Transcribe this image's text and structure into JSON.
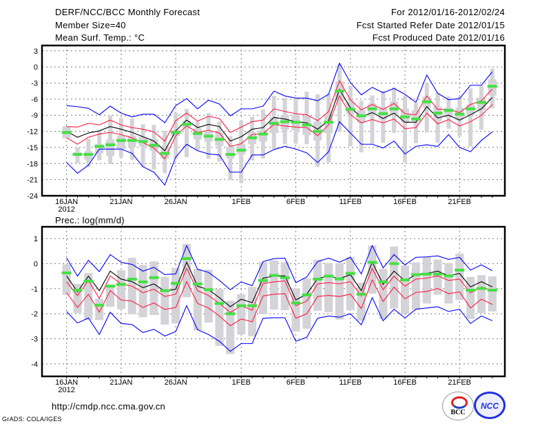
{
  "header": {
    "title": "DERF/NCC/BCC Monthly Forecast",
    "member_size": "Member Size=40",
    "variable": "Mean Surf. Temp.: °C",
    "period": "For 2012/01/16-2012/02/24",
    "start_date": "Fcst Started Refer Date 2012/01/15",
    "produced_date": "Fcst Produced Date 2012/01/16"
  },
  "footer": {
    "url": "http://cmdp.ncc.cma.gov.cn",
    "grads": "GrADS: COLA/IGES",
    "logo_bcc": "BCC",
    "logo_ncc": "NCC"
  },
  "colors": {
    "max_min": "#0000ff",
    "spread": "#ff1a40",
    "mean": "#000000",
    "marker": "#44e044",
    "range": "#d3d3d8"
  },
  "chart_data": [
    {
      "type": "line",
      "title": "Mean Surf. Temp.: °C",
      "xlabel": "",
      "ylabel": "",
      "x_tick_labels": [
        "16JAN",
        "21JAN",
        "26JAN",
        "1FEB",
        "6FEB",
        "11FEB",
        "16FEB",
        "21FEB"
      ],
      "x_tick_days": [
        0,
        5,
        10,
        16,
        21,
        26,
        31,
        36
      ],
      "year_label": "2012",
      "xlim": [
        -2.25,
        40.15
      ],
      "ylim": [
        -24,
        4
      ],
      "y_ticks": [
        3,
        0,
        -3,
        -6,
        -9,
        -12,
        -15,
        -18,
        -21,
        -24
      ],
      "grid": true,
      "series": {
        "max": [
          -7.2,
          -7.4,
          -7.7,
          -8.9,
          -7.3,
          -8.6,
          -9.3,
          -8.8,
          -8.8,
          -10.4,
          -7.2,
          -5.9,
          -7.8,
          -6.2,
          -6.9,
          -9.1,
          -7.8,
          -7.8,
          -7.3,
          -4.5,
          -5.4,
          -5.8,
          -5.8,
          -6.3,
          -5.1,
          0.7,
          -2.9,
          -5.2,
          -3.8,
          -4.8,
          -4.0,
          -5.1,
          -6.6,
          -1.5,
          -4.9,
          -6.1,
          -5.9,
          -3.4,
          -3.4,
          -0.9
        ],
        "upper": [
          -11.1,
          -11.2,
          -10.5,
          -10.8,
          -9.9,
          -10.8,
          -11.3,
          -11.6,
          -12.1,
          -13.8,
          -10.0,
          -8.6,
          -10.1,
          -9.2,
          -9.6,
          -12.2,
          -11.2,
          -10.2,
          -9.9,
          -7.8,
          -8.3,
          -8.7,
          -8.9,
          -10.0,
          -8.3,
          -2.6,
          -6.1,
          -8.0,
          -7.0,
          -7.9,
          -6.8,
          -8.7,
          -8.9,
          -5.4,
          -7.9,
          -7.9,
          -8.5,
          -7.0,
          -6.3,
          -4.1
        ],
        "mean": [
          -12.0,
          -13.1,
          -12.3,
          -11.9,
          -11.1,
          -11.6,
          -12.2,
          -13.0,
          -13.8,
          -15.6,
          -11.9,
          -9.9,
          -11.3,
          -10.7,
          -11.1,
          -13.8,
          -13.0,
          -11.6,
          -11.3,
          -9.4,
          -9.7,
          -10.2,
          -10.4,
          -11.6,
          -10.0,
          -4.2,
          -7.6,
          -9.3,
          -8.5,
          -9.6,
          -8.6,
          -10.3,
          -10.3,
          -7.4,
          -9.5,
          -9.0,
          -9.9,
          -8.9,
          -7.8,
          -5.7
        ],
        "lower": [
          -13.2,
          -14.4,
          -13.1,
          -12.5,
          -12.2,
          -12.6,
          -13.2,
          -14.1,
          -15.1,
          -17.1,
          -12.8,
          -11.0,
          -12.2,
          -11.8,
          -12.3,
          -14.8,
          -14.3,
          -12.6,
          -12.4,
          -10.7,
          -11.0,
          -11.2,
          -11.3,
          -12.8,
          -10.8,
          -5.4,
          -8.9,
          -10.4,
          -9.8,
          -10.4,
          -9.7,
          -11.5,
          -11.3,
          -8.6,
          -10.6,
          -9.8,
          -11.0,
          -10.2,
          -9.0,
          -7.0
        ],
        "min": [
          -17.8,
          -19.8,
          -18.3,
          -15.3,
          -15.3,
          -15.3,
          -16.1,
          -18.6,
          -19.6,
          -22.0,
          -16.8,
          -14.4,
          -15.6,
          -16.2,
          -16.4,
          -19.6,
          -19.6,
          -16.4,
          -16.4,
          -15.4,
          -14.8,
          -15.3,
          -16.0,
          -17.8,
          -15.8,
          -10.2,
          -12.3,
          -14.4,
          -14.4,
          -15.1,
          -13.8,
          -16.2,
          -14.8,
          -14.5,
          -14.8,
          -12.6,
          -15.0,
          -15.8,
          -13.7,
          -12.1
        ],
        "marker": [
          -12.2,
          -16.3,
          -16.3,
          -14.8,
          -14.5,
          -13.7,
          -13.7,
          -13.9,
          -14.6,
          -16.1,
          -12.2,
          -10.7,
          -12.4,
          -12.9,
          -13.5,
          -16.3,
          -15.5,
          -13.2,
          -12.5,
          -10.5,
          -10.2,
          -10.3,
          -10.8,
          -12.0,
          -10.3,
          -4.5,
          -7.9,
          -9.1,
          -7.8,
          -8.7,
          -7.8,
          -9.3,
          -9.7,
          -6.5,
          -8.6,
          -8.1,
          -8.8,
          -7.8,
          -6.6,
          -3.6
        ],
        "range_hi": [
          -11.0,
          -15.0,
          -13.4,
          -11.9,
          -9.0,
          -9.5,
          -9.6,
          -10.7,
          -10.8,
          -11.9,
          -8.6,
          -7.8,
          -10.2,
          -8.6,
          -10.2,
          -12.9,
          -10.1,
          -9.3,
          -7.9,
          -5.4,
          -5.8,
          -5.8,
          -4.6,
          -5.1,
          -5.0,
          0.5,
          -3.5,
          -6.3,
          -5.3,
          -4.5,
          -3.8,
          -5.5,
          -6.7,
          -3.0,
          -4.8,
          -5.5,
          -5.5,
          -4.0,
          -3.5,
          -0.3
        ],
        "range_lo": [
          -13.3,
          -17.9,
          -18.6,
          -17.4,
          -18.1,
          -16.8,
          -17.3,
          -18.7,
          -19.1,
          -19.8,
          -17.1,
          -16.8,
          -15.5,
          -17.1,
          -17.6,
          -21.1,
          -21.6,
          -17.4,
          -17.1,
          -15.3,
          -14.4,
          -14.3,
          -14.4,
          -18.6,
          -17.8,
          -12.1,
          -14.8,
          -15.9,
          -14.3,
          -14.1,
          -12.3,
          -17.8,
          -14.2,
          -12.2,
          -14.1,
          -11.5,
          -12.9,
          -14.8,
          -11.7,
          -7.7
        ],
        "box_hi": [
          -11.1,
          -15.9,
          -15.7,
          -14.4,
          -13.5,
          -12.8,
          -12.8,
          -13.1,
          -13.4,
          -14.7,
          -11.7,
          -10.0,
          -11.4,
          -12.0,
          -12.3,
          -14.8,
          -14.3,
          -12.1,
          -11.7,
          -9.3,
          -8.9,
          -8.9,
          -9.1,
          -10.2,
          -8.8,
          -2.7,
          -6.6,
          -8.1,
          -6.8,
          -7.6,
          -6.4,
          -7.8,
          -8.1,
          -5.5,
          -7.4,
          -7.6,
          -7.6,
          -7.0,
          -5.7,
          -2.3
        ],
        "box_lo": [
          -13.3,
          -16.6,
          -17.3,
          -16.1,
          -16.6,
          -15.3,
          -14.9,
          -14.8,
          -15.6,
          -17.1,
          -12.9,
          -11.5,
          -13.5,
          -13.9,
          -14.7,
          -17.1,
          -16.3,
          -14.4,
          -13.9,
          -12.3,
          -11.7,
          -11.8,
          -12.7,
          -13.7,
          -12.3,
          -6.3,
          -8.8,
          -10.4,
          -8.7,
          -9.8,
          -8.8,
          -10.4,
          -10.2,
          -7.6,
          -10.0,
          -9.3,
          -9.8,
          -8.9,
          -8.1,
          -5.3
        ]
      }
    },
    {
      "type": "line",
      "title": "Prec.: log(mm/d)",
      "xlabel": "",
      "ylabel": "",
      "x_tick_labels": [
        "16JAN",
        "21JAN",
        "26JAN",
        "1FEB",
        "6FEB",
        "11FEB",
        "16FEB",
        "21FEB"
      ],
      "x_tick_days": [
        0,
        5,
        10,
        16,
        21,
        26,
        31,
        36
      ],
      "year_label": "2012",
      "xlim": [
        -2.25,
        40.15
      ],
      "ylim": [
        -4.5,
        1.47
      ],
      "y_ticks": [
        1,
        0,
        -1,
        -2,
        -3,
        -4
      ],
      "grid": true,
      "series": {
        "max": [
          0.23,
          -0.5,
          0.13,
          -0.32,
          0.36,
          0.05,
          -0.03,
          -0.3,
          -0.15,
          -0.44,
          -0.41,
          0.72,
          -0.23,
          -0.35,
          -0.67,
          -1.04,
          -0.73,
          -0.88,
          0.08,
          0.2,
          0.22,
          -0.76,
          -0.53,
          0.08,
          0.22,
          0.06,
          0.25,
          -0.41,
          0.72,
          -0.17,
          0.36,
          -0.05,
          0.25,
          0.27,
          0.31,
          0.17,
          0.25,
          -0.26,
          -0.05,
          -0.28
        ],
        "upper": [
          -0.72,
          -1.28,
          -0.67,
          -1.39,
          -0.49,
          -0.81,
          -0.9,
          -1.16,
          -1.02,
          -1.31,
          -1.22,
          -0.19,
          -1.08,
          -1.27,
          -1.59,
          -1.95,
          -1.68,
          -1.86,
          -0.79,
          -0.73,
          -0.69,
          -1.68,
          -1.5,
          -0.81,
          -0.76,
          -0.81,
          -0.72,
          -1.29,
          -0.19,
          -1.04,
          -0.5,
          -0.9,
          -0.62,
          -0.58,
          -0.49,
          -0.67,
          -0.62,
          -1.17,
          -0.93,
          -1.08
        ],
        "mean": [
          -0.49,
          -1.13,
          -0.5,
          -1.08,
          -0.3,
          -0.62,
          -0.72,
          -0.96,
          -0.81,
          -1.1,
          -1.02,
          0.06,
          -0.9,
          -1.04,
          -1.36,
          -1.72,
          -1.42,
          -1.56,
          -0.58,
          -0.5,
          -0.49,
          -1.45,
          -1.22,
          -0.6,
          -0.49,
          -0.6,
          -0.44,
          -1.08,
          0.06,
          -0.83,
          -0.3,
          -0.69,
          -0.44,
          -0.39,
          -0.3,
          -0.49,
          -0.39,
          -0.93,
          -0.72,
          -0.93
        ],
        "lower": [
          -1.16,
          -1.75,
          -1.22,
          -1.94,
          -1.08,
          -1.45,
          -1.5,
          -1.75,
          -1.57,
          -1.83,
          -1.75,
          -0.72,
          -1.59,
          -1.77,
          -2.09,
          -2.48,
          -2.21,
          -2.32,
          -1.29,
          -1.22,
          -1.2,
          -2.18,
          -2.0,
          -1.31,
          -1.27,
          -1.31,
          -1.22,
          -1.79,
          -0.65,
          -1.51,
          -0.94,
          -1.4,
          -1.15,
          -1.11,
          -0.99,
          -1.2,
          -1.13,
          -1.77,
          -1.42,
          -1.63
        ],
        "min": [
          -1.91,
          -2.37,
          -2.17,
          -2.83,
          -1.94,
          -2.39,
          -2.43,
          -2.75,
          -2.62,
          -2.89,
          -2.71,
          -1.68,
          -2.64,
          -2.83,
          -3.1,
          -3.5,
          -3.19,
          -3.19,
          -2.18,
          -2.16,
          -2.16,
          -3.1,
          -2.94,
          -2.18,
          -2.09,
          -2.14,
          -2.0,
          -2.44,
          -1.36,
          -2.28,
          -1.82,
          -2.17,
          -1.82,
          -1.77,
          -1.72,
          -1.91,
          -1.82,
          -2.39,
          -2.09,
          -2.28
        ],
        "marker": [
          -0.37,
          -1.06,
          -0.7,
          -1.66,
          -0.9,
          -0.83,
          -0.62,
          -0.73,
          -0.56,
          -1.08,
          -0.79,
          0.2,
          -0.81,
          -1.04,
          -1.59,
          -2.0,
          -1.68,
          -1.68,
          -0.67,
          -0.47,
          -0.56,
          -1.57,
          -1.25,
          -0.62,
          -0.5,
          -0.61,
          -0.39,
          -1.22,
          0.05,
          -0.73,
          0.0,
          -0.65,
          -0.44,
          -0.42,
          -0.42,
          -0.49,
          -0.26,
          -1.06,
          -0.99,
          -1.06
        ],
        "range_hi": [
          -0.03,
          -0.81,
          -0.37,
          -1.4,
          -0.83,
          -0.26,
          0.23,
          -0.05,
          0.09,
          -0.53,
          -0.17,
          0.78,
          -0.21,
          -0.24,
          -1.02,
          -1.48,
          -1.22,
          -0.93,
          0.06,
          0.13,
          0.06,
          -0.99,
          -0.58,
          0.16,
          0.02,
          0.02,
          0.27,
          -0.76,
          0.72,
          -0.21,
          0.68,
          -0.07,
          0.05,
          0.27,
          0.16,
          0.02,
          0.4,
          -0.53,
          -0.46,
          -0.51
        ],
        "range_lo": [
          -1.25,
          -1.97,
          -2.25,
          -2.25,
          -1.72,
          -1.82,
          -2.02,
          -2.14,
          -2.05,
          -2.43,
          -2.39,
          -1.34,
          -2.67,
          -2.35,
          -3.28,
          -3.61,
          -2.83,
          -2.9,
          -2.02,
          -1.83,
          -1.86,
          -2.71,
          -2.6,
          -1.88,
          -1.94,
          -2.23,
          -1.86,
          -2.28,
          -1.2,
          -2.21,
          -1.79,
          -2.0,
          -1.84,
          -1.59,
          -1.24,
          -1.59,
          -1.45,
          -2.21,
          -1.97,
          -1.91
        ]
      }
    }
  ]
}
